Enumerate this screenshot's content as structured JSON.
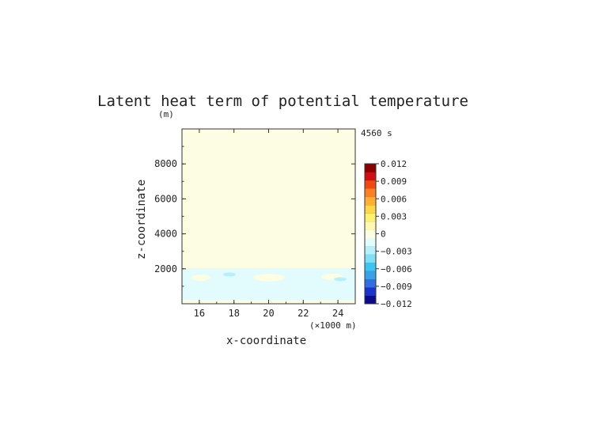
{
  "chart_data": {
    "type": "heatmap",
    "title": "Latent heat term of potential temperature",
    "time_label": "4560 s",
    "xlabel": "x-coordinate",
    "ylabel": "z-coordinate",
    "x_unit": "(×1000 m)",
    "y_unit": "(m)",
    "xlim": [
      15,
      25
    ],
    "ylim": [
      0,
      10000
    ],
    "x_ticks": [
      16,
      18,
      20,
      22,
      24
    ],
    "x_tick_labels": [
      "16",
      "18",
      "20",
      "22",
      "24"
    ],
    "y_ticks": [
      2000,
      4000,
      6000,
      8000
    ],
    "y_tick_labels": [
      "2000",
      "4000",
      "6000",
      "8000"
    ],
    "colorbar": {
      "min": -0.012,
      "max": 0.012,
      "ticks": [
        0.012,
        0.009,
        0.006,
        0.003,
        0,
        -0.003,
        -0.006,
        -0.009,
        -0.012
      ],
      "tick_labels": [
        "0.012",
        "0.009",
        "0.006",
        "0.003",
        "0",
        "−0.003",
        "−0.006",
        "−0.009",
        "−0.012"
      ],
      "colors": [
        "#0a0a8a",
        "#1a33cc",
        "#2f6fe0",
        "#3ba0ec",
        "#39c6f0",
        "#7fe0f5",
        "#b6f0fa",
        "#e2fbfc",
        "#fdfde3",
        "#fff8b0",
        "#fff070",
        "#ffd84a",
        "#ffb030",
        "#ff8020",
        "#f04a10",
        "#d01010",
        "#8a0000"
      ]
    },
    "background_value": 0.0005,
    "features": [
      {
        "type": "band",
        "z_range": [
          200,
          2000
        ],
        "x_range": [
          15,
          25
        ],
        "value": -0.0012
      },
      {
        "type": "blob",
        "x": 17.0,
        "z": 1650,
        "value": -0.0035
      },
      {
        "type": "blob",
        "x": 23.5,
        "z": 1500,
        "value": -0.0035
      },
      {
        "type": "blob",
        "x": 16.0,
        "z": 1550,
        "value": 0.0008
      },
      {
        "type": "blob",
        "x": 20.0,
        "z": 1550,
        "value": 0.0008
      },
      {
        "type": "blob",
        "x": 24.5,
        "z": 1600,
        "value": 0.0008
      },
      {
        "type": "blob",
        "x": 19.0,
        "z": 700,
        "value": -0.0005
      },
      {
        "type": "blob",
        "x": 22.0,
        "z": 700,
        "value": -0.0005
      }
    ]
  }
}
